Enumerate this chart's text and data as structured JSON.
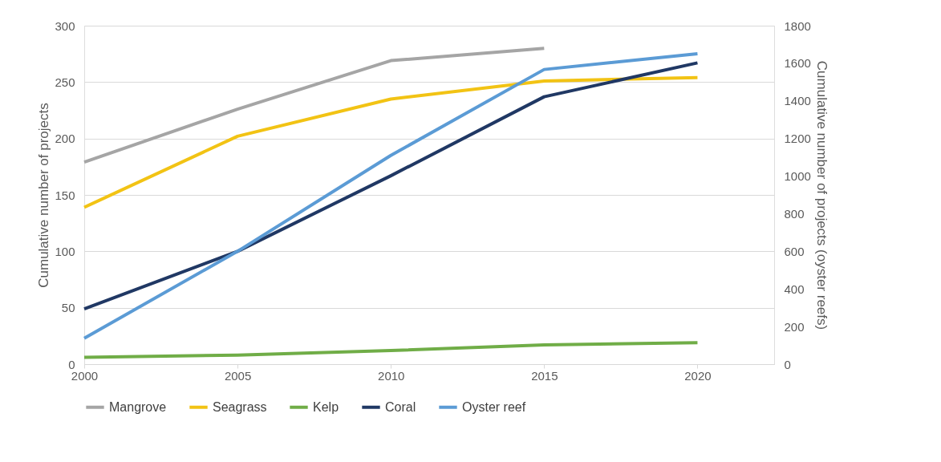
{
  "chart_data": {
    "type": "line",
    "ylabel": "Cumulative number of projects",
    "y2label": "Cumulative number of projects (oyster reefs)",
    "x": [
      2000,
      2005,
      2010,
      2015,
      2020
    ],
    "xlim": [
      2000,
      2022.5
    ],
    "xticks": [
      2000,
      2005,
      2010,
      2015,
      2020
    ],
    "ylim": [
      0,
      300
    ],
    "yticks": [
      0,
      50,
      100,
      150,
      200,
      250,
      300
    ],
    "y2lim": [
      0,
      1800
    ],
    "y2ticks": [
      0,
      200,
      400,
      600,
      800,
      1000,
      1200,
      1400,
      1600,
      1800
    ],
    "grid": "y",
    "legend": "bottom",
    "marker": "none",
    "line_style": "solid",
    "series": [
      {
        "name": "Mangrove",
        "color": "#a5a5a5",
        "values": [
          179,
          226,
          269,
          280,
          null
        ]
      },
      {
        "name": "Seagrass",
        "color": "#f2c314",
        "values": [
          139,
          202,
          235,
          251,
          254
        ]
      },
      {
        "name": "Kelp",
        "color": "#70ad47",
        "values": [
          6,
          8,
          12,
          17,
          19
        ]
      },
      {
        "name": "Coral",
        "color": "#203864",
        "values": [
          49,
          100,
          167,
          237,
          267
        ]
      },
      {
        "name": "Oyster reef",
        "color": "#5b9bd5",
        "axis": "y2",
        "values": [
          138,
          600,
          1110,
          1567,
          1651
        ]
      }
    ]
  }
}
